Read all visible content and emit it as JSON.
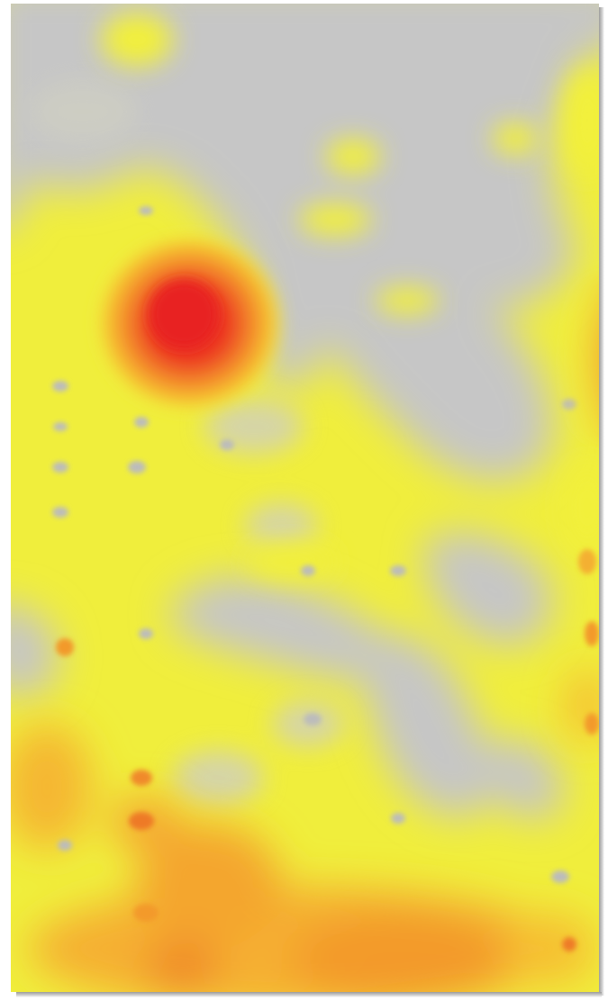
{
  "image": {
    "kind": "heat-map-image",
    "palette": {
      "background": "#c6c6c6",
      "low": "#f0ee3a",
      "mid": "#f6b530",
      "high": "#ea2b22",
      "edge_shadow": "#9a9a9a"
    }
  }
}
